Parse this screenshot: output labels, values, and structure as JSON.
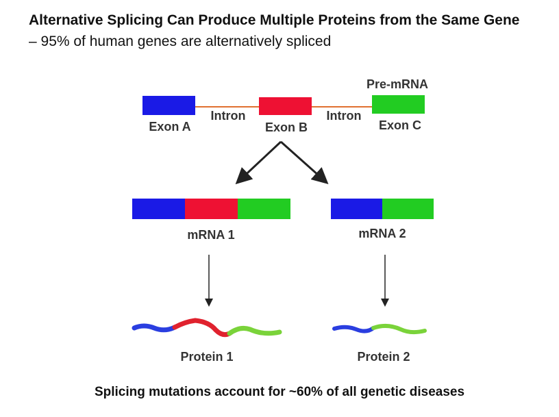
{
  "header": {
    "title": "Alternative Splicing Can Produce Multiple Proteins from the Same Gene",
    "subtitle": "– 95% of human genes are alternatively spliced"
  },
  "pre_mrna": {
    "label": "Pre-mRNA",
    "exon_a": "Exon A",
    "intron_1": "Intron",
    "exon_b": "Exon B",
    "intron_2": "Intron",
    "exon_c": "Exon C"
  },
  "mrna_1": {
    "label": "mRNA 1",
    "protein": "Protein 1"
  },
  "mrna_2": {
    "label": "mRNA 2",
    "protein": "Protein 2"
  },
  "footer": "Splicing mutations account for ~60% of all genetic diseases"
}
